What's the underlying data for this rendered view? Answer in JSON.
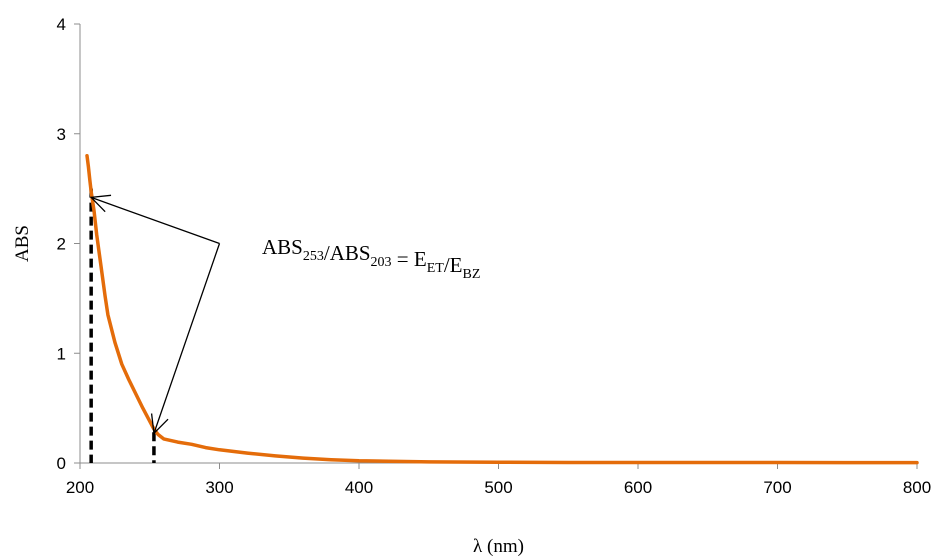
{
  "chart_data": {
    "type": "line",
    "title": "",
    "xlabel": "λ (nm)",
    "ylabel": "ABS",
    "xlim": [
      200,
      800
    ],
    "ylim": [
      0,
      4
    ],
    "x_ticks": [
      "200",
      "300",
      "400",
      "500",
      "600",
      "700",
      "800"
    ],
    "y_ticks": [
      "0",
      "1",
      "2",
      "3",
      "4"
    ],
    "grid": false,
    "legend": "none",
    "series": [
      {
        "color": "#E46C0A",
        "x": [
          205,
          206,
          207,
          208,
          210,
          212,
          215,
          218,
          220,
          225,
          230,
          235,
          240,
          245,
          250,
          253,
          256,
          260,
          270,
          280,
          290,
          300,
          320,
          340,
          360,
          380,
          400,
          450,
          500,
          550,
          600,
          650,
          700,
          750,
          800
        ],
        "y": [
          2.8,
          2.7,
          2.58,
          2.47,
          2.3,
          2.08,
          1.8,
          1.52,
          1.35,
          1.1,
          0.9,
          0.76,
          0.63,
          0.5,
          0.38,
          0.31,
          0.26,
          0.22,
          0.19,
          0.17,
          0.14,
          0.12,
          0.09,
          0.065,
          0.045,
          0.03,
          0.02,
          0.01,
          0.007,
          0.005,
          0.005,
          0.005,
          0.005,
          0.004,
          0.004
        ]
      }
    ],
    "annotation": {
      "parts": [
        {
          "text": "ABS",
          "sub": "253"
        },
        {
          "text": "/ABS",
          "sub": "203"
        },
        {
          "text": " = E",
          "sub": "ET"
        },
        {
          "text": "/E",
          "sub": "BZ"
        }
      ],
      "arrow_origin": [
        300,
        2.0
      ],
      "arrow_targets": [
        [
          208,
          2.42
        ],
        [
          253,
          0.27
        ]
      ],
      "markers": [
        [
          208,
          2.5
        ],
        [
          253,
          0.28
        ]
      ]
    }
  }
}
